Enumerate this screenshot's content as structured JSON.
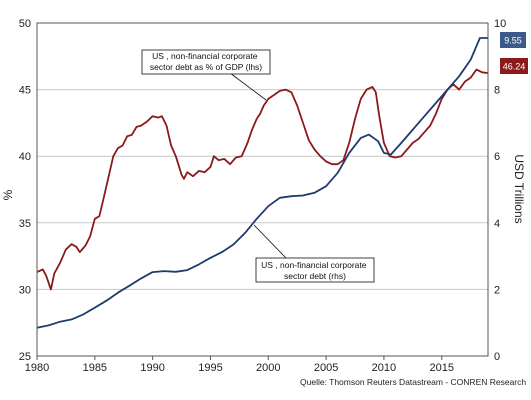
{
  "chart_data": {
    "type": "line",
    "xlim": [
      1980,
      2019
    ],
    "x_ticks": [
      "1980",
      "1985",
      "1990",
      "1995",
      "2000",
      "2005",
      "2010",
      "2015"
    ],
    "y_left": {
      "label": "%",
      "lim": [
        25,
        50
      ],
      "ticks": [
        "25",
        "30",
        "35",
        "40",
        "45",
        "50"
      ]
    },
    "y_right": {
      "label": "USD Trillions",
      "lim": [
        0,
        10
      ],
      "ticks": [
        "0",
        "2",
        "4",
        "6",
        "8",
        "10"
      ]
    },
    "grid": true,
    "series": [
      {
        "name": "US , non-financial corporate sector debt as % of GDP (lhs)",
        "label_lines": [
          "US , non-financial corporate",
          "sector debt as % of GDP (lhs)"
        ],
        "axis": "left",
        "color": "#8b1a1a",
        "end_value": "46.24",
        "points": [
          [
            1980,
            31.3
          ],
          [
            1980.5,
            31.5
          ],
          [
            1980.8,
            31.0
          ],
          [
            1981.2,
            30.0
          ],
          [
            1981.5,
            31.2
          ],
          [
            1982.0,
            32.0
          ],
          [
            1982.5,
            33.0
          ],
          [
            1983.0,
            33.4
          ],
          [
            1983.4,
            33.2
          ],
          [
            1983.7,
            32.8
          ],
          [
            1984.2,
            33.3
          ],
          [
            1984.6,
            34.0
          ],
          [
            1985.0,
            35.3
          ],
          [
            1985.4,
            35.5
          ],
          [
            1985.8,
            37.0
          ],
          [
            1986.2,
            38.5
          ],
          [
            1986.6,
            40.0
          ],
          [
            1987.0,
            40.6
          ],
          [
            1987.4,
            40.8
          ],
          [
            1987.8,
            41.5
          ],
          [
            1988.2,
            41.6
          ],
          [
            1988.6,
            42.2
          ],
          [
            1989.0,
            42.3
          ],
          [
            1989.5,
            42.6
          ],
          [
            1990.0,
            43.0
          ],
          [
            1990.5,
            42.9
          ],
          [
            1990.8,
            43.0
          ],
          [
            1991.2,
            42.3
          ],
          [
            1991.6,
            40.8
          ],
          [
            1992.0,
            40.0
          ],
          [
            1992.5,
            38.6
          ],
          [
            1992.7,
            38.3
          ],
          [
            1993.0,
            38.8
          ],
          [
            1993.5,
            38.5
          ],
          [
            1994.0,
            38.9
          ],
          [
            1994.5,
            38.8
          ],
          [
            1995.0,
            39.2
          ],
          [
            1995.3,
            40.0
          ],
          [
            1995.7,
            39.7
          ],
          [
            1996.2,
            39.8
          ],
          [
            1996.7,
            39.4
          ],
          [
            1997.2,
            39.9
          ],
          [
            1997.7,
            40.0
          ],
          [
            1998.2,
            41.0
          ],
          [
            1998.6,
            42.0
          ],
          [
            1999.0,
            42.8
          ],
          [
            1999.3,
            43.2
          ],
          [
            1999.6,
            43.8
          ],
          [
            2000.0,
            44.3
          ],
          [
            2000.5,
            44.6
          ],
          [
            2001.0,
            44.9
          ],
          [
            2001.5,
            45.0
          ],
          [
            2002.0,
            44.8
          ],
          [
            2002.5,
            43.8
          ],
          [
            2003.0,
            42.5
          ],
          [
            2003.5,
            41.2
          ],
          [
            2004.0,
            40.5
          ],
          [
            2004.5,
            40.0
          ],
          [
            2005.0,
            39.6
          ],
          [
            2005.5,
            39.4
          ],
          [
            2006.0,
            39.4
          ],
          [
            2006.5,
            39.7
          ],
          [
            2007.0,
            41.0
          ],
          [
            2007.5,
            42.8
          ],
          [
            2008.0,
            44.3
          ],
          [
            2008.5,
            45.0
          ],
          [
            2009.0,
            45.2
          ],
          [
            2009.3,
            44.8
          ],
          [
            2009.6,
            43.0
          ],
          [
            2010.0,
            41.0
          ],
          [
            2010.5,
            40.0
          ],
          [
            2011.0,
            39.9
          ],
          [
            2011.5,
            40.0
          ],
          [
            2012.0,
            40.5
          ],
          [
            2012.5,
            41.0
          ],
          [
            2013.0,
            41.3
          ],
          [
            2013.5,
            41.8
          ],
          [
            2014.0,
            42.3
          ],
          [
            2014.5,
            43.2
          ],
          [
            2015.0,
            44.3
          ],
          [
            2015.5,
            45.0
          ],
          [
            2016.0,
            45.4
          ],
          [
            2016.5,
            45.0
          ],
          [
            2017.0,
            45.6
          ],
          [
            2017.5,
            45.9
          ],
          [
            2018.0,
            46.5
          ],
          [
            2018.5,
            46.3
          ],
          [
            2019.0,
            46.24
          ]
        ]
      },
      {
        "name": "US , non-financial corporate sector debt (rhs)",
        "label_lines": [
          "US , non-financial corporate",
          "sector debt (rhs)"
        ],
        "axis": "right",
        "color": "#1f3b6e",
        "end_value": "9.55",
        "points": [
          [
            1980,
            0.85
          ],
          [
            1981,
            0.92
          ],
          [
            1982,
            1.03
          ],
          [
            1983,
            1.1
          ],
          [
            1984,
            1.25
          ],
          [
            1985,
            1.45
          ],
          [
            1986,
            1.66
          ],
          [
            1987,
            1.9
          ],
          [
            1988,
            2.11
          ],
          [
            1989,
            2.33
          ],
          [
            1990,
            2.52
          ],
          [
            1991,
            2.55
          ],
          [
            1992,
            2.53
          ],
          [
            1993,
            2.58
          ],
          [
            1994,
            2.75
          ],
          [
            1995,
            2.95
          ],
          [
            1996,
            3.12
          ],
          [
            1997,
            3.35
          ],
          [
            1998,
            3.7
          ],
          [
            1999,
            4.12
          ],
          [
            2000,
            4.5
          ],
          [
            2001,
            4.75
          ],
          [
            2002,
            4.8
          ],
          [
            2003,
            4.82
          ],
          [
            2004,
            4.9
          ],
          [
            2005,
            5.1
          ],
          [
            2006,
            5.5
          ],
          [
            2007,
            6.1
          ],
          [
            2008,
            6.55
          ],
          [
            2008.7,
            6.65
          ],
          [
            2009.5,
            6.45
          ],
          [
            2010.0,
            6.1
          ],
          [
            2010.6,
            6.05
          ],
          [
            2011.5,
            6.4
          ],
          [
            2012.5,
            6.8
          ],
          [
            2013.5,
            7.2
          ],
          [
            2014.5,
            7.6
          ],
          [
            2015.5,
            8.0
          ],
          [
            2016.5,
            8.4
          ],
          [
            2017.5,
            8.9
          ],
          [
            2018.3,
            9.55
          ],
          [
            2019,
            9.55
          ]
        ]
      }
    ]
  },
  "source": "Quelle: Thomson Reuters Datastream - CONREN Research"
}
